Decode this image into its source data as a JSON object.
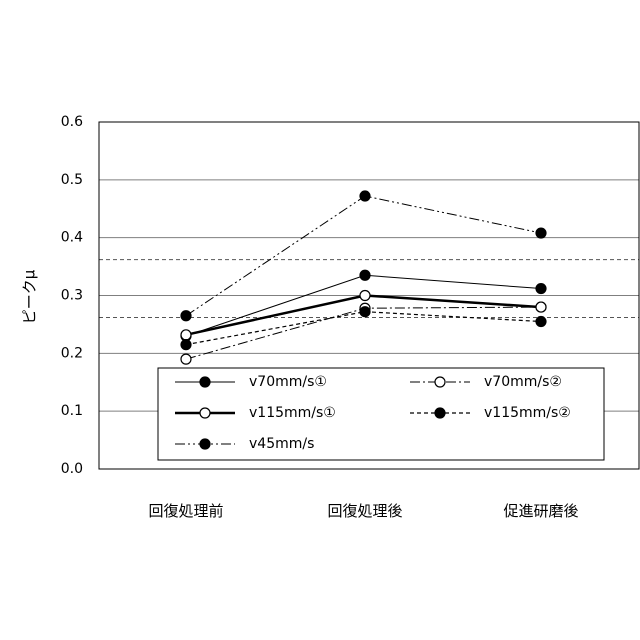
{
  "chart_data": {
    "type": "line",
    "title": "",
    "xlabel": "",
    "ylabel": "ピークμ",
    "ylim": [
      0,
      0.6
    ],
    "yticks": [
      "0.0",
      "0.1",
      "0.2",
      "0.3",
      "0.4",
      "0.5",
      "0.6"
    ],
    "categories": [
      "回復処理前",
      "回復処理後",
      "促進研磨後"
    ],
    "grid": true,
    "reference_lines": [
      0.362,
      0.262
    ],
    "series": [
      {
        "name": "v70mm/s①",
        "values": [
          0.23,
          0.335,
          0.312
        ],
        "style": "solid-thin",
        "marker": "filled"
      },
      {
        "name": "v70mm/s②",
        "values": [
          0.19,
          0.278,
          0.28
        ],
        "style": "dashdot",
        "marker": "open"
      },
      {
        "name": "v115mm/s①",
        "values": [
          0.232,
          0.3,
          0.28
        ],
        "style": "solid-thick",
        "marker": "open"
      },
      {
        "name": "v115mm/s②",
        "values": [
          0.215,
          0.272,
          0.255
        ],
        "style": "dashed",
        "marker": "filled"
      },
      {
        "name": "v45mm/s",
        "values": [
          0.265,
          0.472,
          0.408
        ],
        "style": "dashdotdot",
        "marker": "filled"
      }
    ],
    "legend_position": "bottom-inside"
  }
}
